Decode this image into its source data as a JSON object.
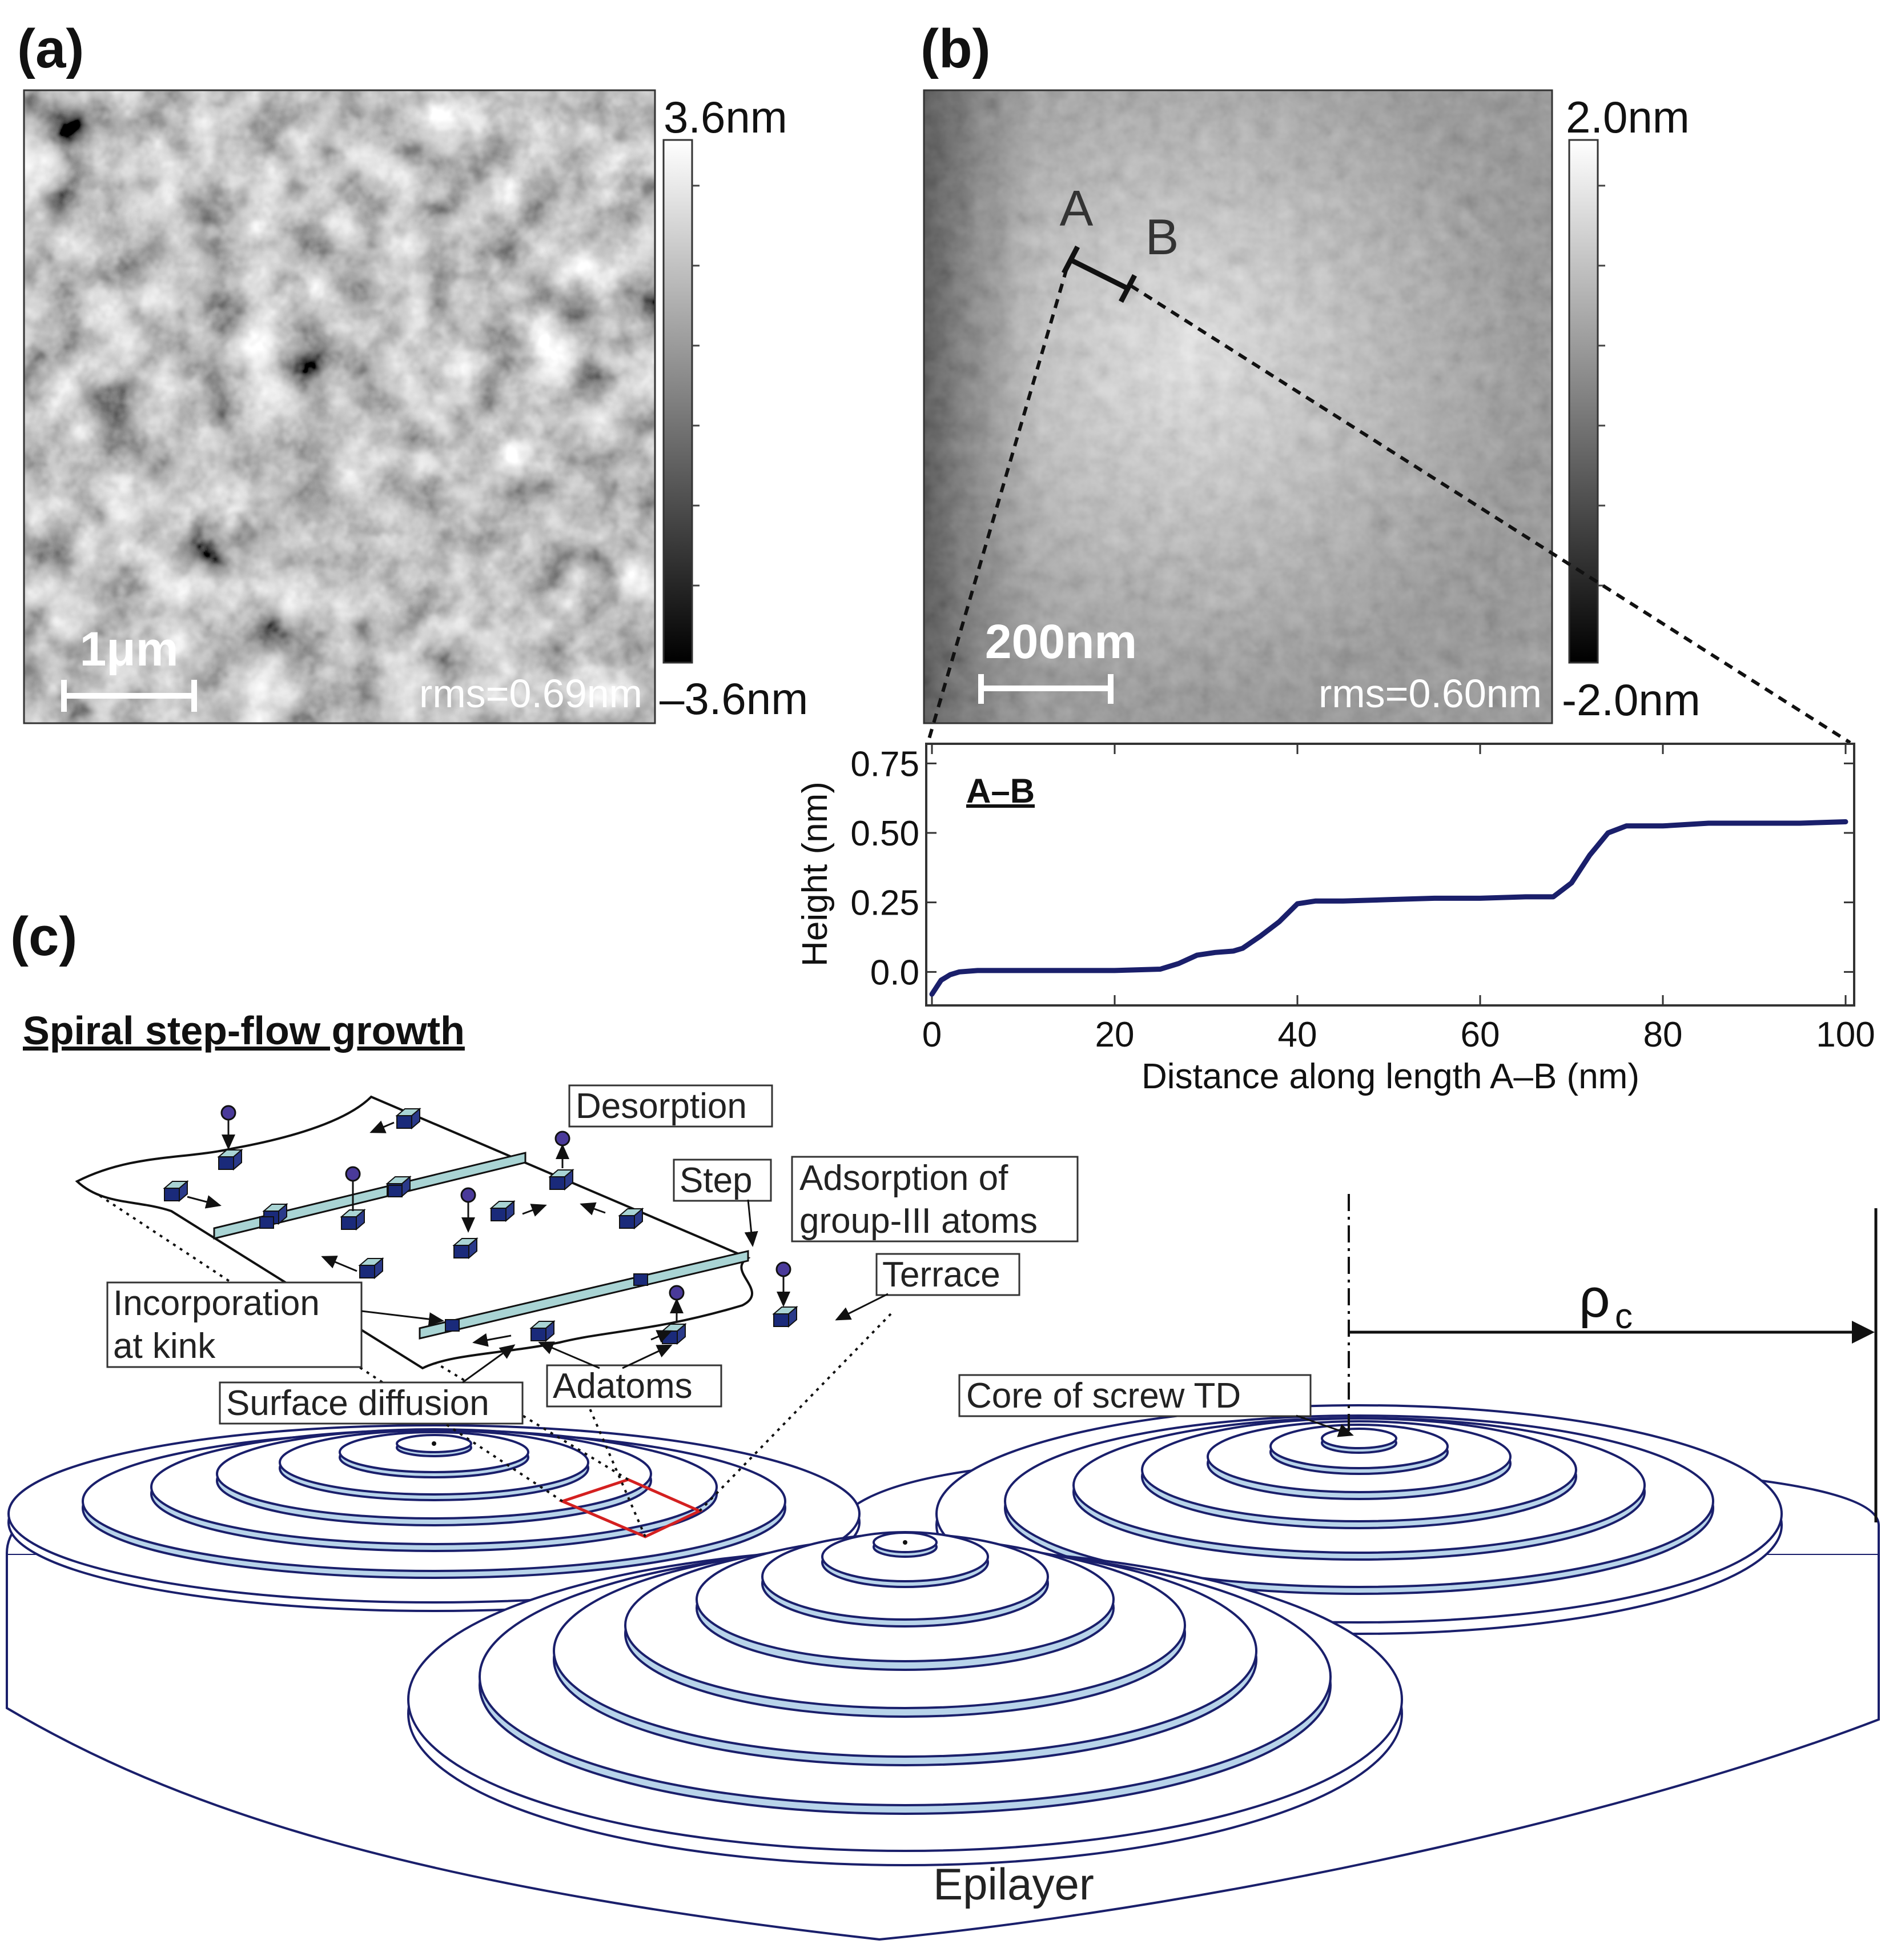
{
  "panels": {
    "a": {
      "label": "(a)",
      "colorbar_max": "3.6nm",
      "colorbar_min": "–3.6nm",
      "scale_bar": "1μm",
      "rms": "rms=0.69nm"
    },
    "b": {
      "label": "(b)",
      "colorbar_max": "2.0nm",
      "colorbar_min": "-2.0nm",
      "scale_bar": "200nm",
      "rms": "rms=0.60nm",
      "point_a": "A",
      "point_b": "B"
    },
    "c": {
      "label": "(c)",
      "heading": "Spiral step-flow growth",
      "callouts": {
        "desorption": "Desorption",
        "step": "Step",
        "adsorption_line1": "Adsorption of",
        "adsorption_line2": "group-III atoms",
        "terrace": "Terrace",
        "incorporation_line1": "Incorporation",
        "incorporation_line2": "at kink",
        "adatoms": "Adatoms",
        "surface_diffusion": "Surface diffusion",
        "core": "Core of screw TD",
        "rho": "ρ",
        "rho_sub": "c",
        "epilayer": "Epilayer"
      }
    }
  },
  "chart_data": {
    "type": "line",
    "title": "A–B",
    "xlabel": "Distance along length A–B (nm)",
    "ylabel": "Height (nm)",
    "xlim": [
      0,
      100
    ],
    "ylim": [
      -0.1,
      0.8
    ],
    "xticks": [
      0,
      20,
      40,
      60,
      80,
      100
    ],
    "yticks": [
      0.0,
      0.25,
      0.5,
      0.75
    ],
    "xtick_labels": [
      "0",
      "20",
      "40",
      "60",
      "80",
      "100"
    ],
    "ytick_labels": [
      "0.0",
      "0.25",
      "0.50",
      "0.75"
    ],
    "color": "#1a1f6b",
    "x": [
      0,
      1,
      2,
      3,
      5,
      10,
      15,
      20,
      25,
      27,
      29,
      31,
      33,
      34,
      36,
      38,
      40,
      42,
      45,
      50,
      55,
      60,
      65,
      68,
      70,
      72,
      74,
      76,
      78,
      80,
      85,
      90,
      95,
      100
    ],
    "y": [
      -0.08,
      -0.03,
      -0.01,
      0.0,
      0.005,
      0.005,
      0.005,
      0.005,
      0.01,
      0.03,
      0.06,
      0.07,
      0.075,
      0.085,
      0.13,
      0.18,
      0.245,
      0.255,
      0.255,
      0.26,
      0.265,
      0.265,
      0.27,
      0.27,
      0.32,
      0.42,
      0.5,
      0.525,
      0.525,
      0.525,
      0.535,
      0.535,
      0.535,
      0.54
    ]
  }
}
